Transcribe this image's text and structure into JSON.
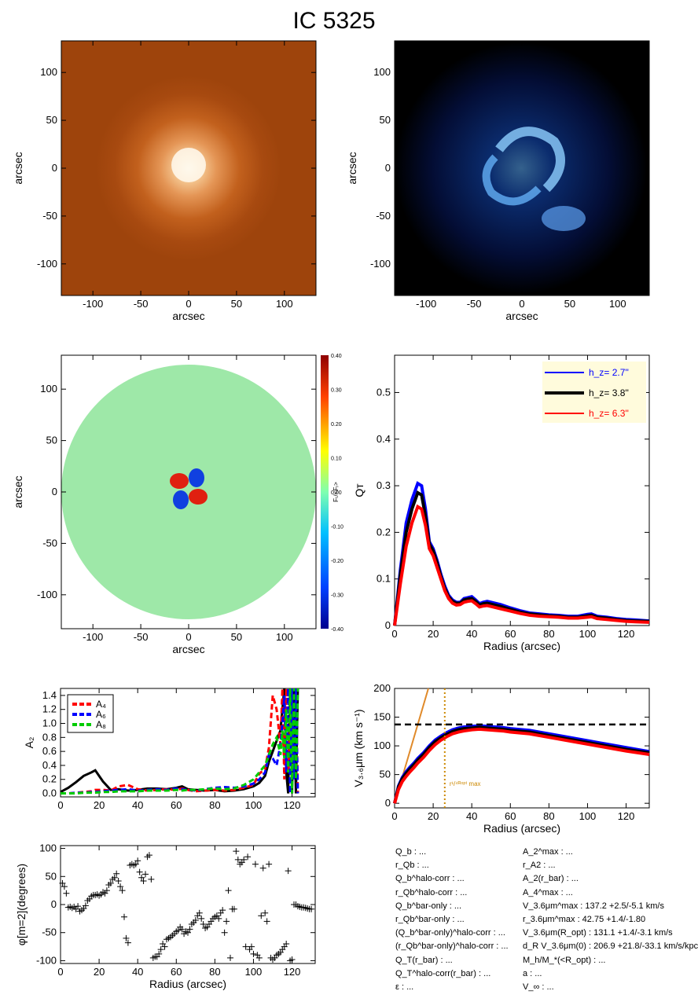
{
  "title": "IC 5325",
  "chart_data": [
    {
      "type": "image",
      "name": "stellar-image",
      "xlabel": "arcsec",
      "ylabel": "arcsec",
      "xticks": [
        -100,
        -50,
        0,
        50,
        100
      ],
      "yticks": [
        -100,
        -50,
        0,
        50,
        100
      ],
      "xlim": [
        -133,
        133
      ],
      "ylim": [
        -133,
        133
      ]
    },
    {
      "type": "image",
      "name": "residual-image",
      "xlabel": "arcsec",
      "ylabel": "arcsec",
      "xticks": [
        -100,
        -50,
        0,
        50,
        100
      ],
      "yticks": [
        -100,
        -50,
        0,
        50,
        100
      ],
      "xlim": [
        -133,
        133
      ],
      "ylim": [
        -133,
        133
      ]
    },
    {
      "type": "heatmap",
      "name": "force-ratio-map",
      "xlabel": "arcsec",
      "ylabel": "arcsec",
      "xticks": [
        -100,
        -50,
        0,
        50,
        100
      ],
      "yticks": [
        -100,
        -50,
        0,
        50,
        100
      ],
      "xlim": [
        -133,
        133
      ],
      "ylim": [
        -133,
        133
      ],
      "colorbar_label": "Fₜ/<Fᵣ>",
      "colorbar_ticks": [
        "0.40",
        "0.30",
        "0.20",
        "0.10",
        "0.00",
        "-0.10",
        "-0.20",
        "-0.30",
        "-0.40"
      ],
      "colorbar_range": [
        -0.4,
        0.4
      ]
    },
    {
      "type": "line",
      "name": "qt-profile",
      "xlabel": "Radius (arcsec)",
      "ylabel": "Qᴛ",
      "xlim": [
        0,
        132
      ],
      "ylim": [
        0,
        0.58
      ],
      "xticks": [
        0,
        20,
        40,
        60,
        80,
        100,
        120
      ],
      "yticks": [
        0.0,
        0.1,
        0.2,
        0.3,
        0.4,
        0.5
      ],
      "legend_position": "top-right",
      "x": [
        0,
        3,
        6,
        9,
        12,
        14,
        16,
        18,
        20,
        22,
        24,
        26,
        28,
        30,
        32,
        34,
        36,
        38,
        40,
        42,
        44,
        46,
        48,
        50,
        55,
        60,
        65,
        70,
        75,
        80,
        85,
        90,
        95,
        100,
        102,
        105,
        110,
        115,
        120,
        125,
        132
      ],
      "series": [
        {
          "name": "h_z= 2.7''",
          "color": "#0000ff",
          "values": [
            0,
            0.12,
            0.22,
            0.27,
            0.305,
            0.3,
            0.25,
            0.18,
            0.165,
            0.14,
            0.11,
            0.085,
            0.065,
            0.055,
            0.05,
            0.05,
            0.058,
            0.06,
            0.062,
            0.055,
            0.047,
            0.05,
            0.052,
            0.05,
            0.045,
            0.038,
            0.032,
            0.027,
            0.025,
            0.023,
            0.022,
            0.02,
            0.02,
            0.024,
            0.025,
            0.02,
            0.018,
            0.015,
            0.013,
            0.012,
            0.01
          ]
        },
        {
          "name": "h_z= 3.8''",
          "color": "#000000",
          "values": [
            0,
            0.11,
            0.2,
            0.25,
            0.285,
            0.28,
            0.235,
            0.175,
            0.16,
            0.135,
            0.105,
            0.08,
            0.062,
            0.052,
            0.048,
            0.048,
            0.055,
            0.057,
            0.058,
            0.052,
            0.044,
            0.047,
            0.048,
            0.046,
            0.041,
            0.035,
            0.029,
            0.025,
            0.023,
            0.021,
            0.02,
            0.018,
            0.018,
            0.021,
            0.022,
            0.018,
            0.016,
            0.013,
            0.011,
            0.01,
            0.009
          ]
        },
        {
          "name": "h_z= 6.3''",
          "color": "#ff0000",
          "values": [
            0,
            0.09,
            0.17,
            0.22,
            0.255,
            0.25,
            0.215,
            0.165,
            0.15,
            0.125,
            0.1,
            0.075,
            0.058,
            0.048,
            0.044,
            0.045,
            0.05,
            0.052,
            0.053,
            0.047,
            0.04,
            0.042,
            0.043,
            0.041,
            0.036,
            0.031,
            0.026,
            0.022,
            0.02,
            0.019,
            0.018,
            0.016,
            0.016,
            0.018,
            0.019,
            0.015,
            0.013,
            0.011,
            0.009,
            0.008,
            0.007
          ]
        }
      ]
    },
    {
      "type": "line",
      "name": "fourier-amplitudes",
      "xlabel": "",
      "ylabel": "A₂",
      "xlim": [
        0,
        132
      ],
      "ylim": [
        -0.05,
        1.5
      ],
      "xticks": [
        0,
        20,
        40,
        60,
        80,
        100,
        120
      ],
      "yticks": [
        "0.0",
        "0.2",
        "0.4",
        "0.6",
        "0.8",
        "1.0",
        "1.2",
        "1.4"
      ],
      "legend_position": "top-left",
      "x": [
        0,
        4,
        8,
        12,
        16,
        18,
        22,
        26,
        30,
        35,
        40,
        45,
        50,
        55,
        60,
        63,
        66,
        70,
        75,
        80,
        85,
        90,
        95,
        100,
        103,
        106,
        108,
        110,
        112,
        114,
        115,
        116,
        117,
        118,
        119,
        120,
        121,
        122,
        123
      ],
      "series": [
        {
          "name": "A₂",
          "color": "#000000",
          "dash": "solid",
          "values": [
            0.02,
            0.08,
            0.16,
            0.25,
            0.3,
            0.33,
            0.17,
            0.05,
            0.06,
            0.04,
            0.05,
            0.07,
            0.07,
            0.06,
            0.08,
            0.1,
            0.06,
            0.05,
            0.04,
            0.05,
            0.03,
            0.04,
            0.06,
            0.1,
            0.15,
            0.25,
            0.45,
            0.6,
            0.75,
            0.9,
            1.2,
            1.5,
            0.3,
            0.0,
            1.5,
            0.0,
            1.5,
            0.0,
            1.5
          ]
        },
        {
          "name": "A₄",
          "color": "#ff0000",
          "dash": "dash",
          "values": [
            0.0,
            0.0,
            0.01,
            0.02,
            0.03,
            0.05,
            0.05,
            0.04,
            0.1,
            0.12,
            0.06,
            0.04,
            0.05,
            0.06,
            0.05,
            0.07,
            0.05,
            0.03,
            0.04,
            0.05,
            0.04,
            0.05,
            0.08,
            0.12,
            0.28,
            0.35,
            0.65,
            1.4,
            1.2,
            0.7,
            1.5,
            0.2,
            1.5,
            0.3,
            0.9,
            1.5,
            0.4,
            1.5,
            0.0
          ]
        },
        {
          "name": "A₆",
          "color": "#0000ff",
          "dash": "dash",
          "values": [
            0.0,
            0.0,
            0.01,
            0.01,
            0.02,
            0.02,
            0.03,
            0.04,
            0.05,
            0.06,
            0.04,
            0.05,
            0.06,
            0.05,
            0.07,
            0.06,
            0.05,
            0.04,
            0.06,
            0.08,
            0.09,
            0.08,
            0.1,
            0.14,
            0.2,
            0.3,
            0.55,
            0.5,
            0.4,
            0.7,
            1.0,
            1.4,
            0.3,
            1.5,
            0.0,
            1.5,
            0.2,
            1.5,
            0.0
          ]
        },
        {
          "name": "A₈",
          "color": "#00cc00",
          "dash": "dash",
          "values": [
            0.0,
            0.0,
            0.0,
            0.01,
            0.01,
            0.01,
            0.02,
            0.02,
            0.03,
            0.03,
            0.03,
            0.04,
            0.04,
            0.04,
            0.05,
            0.04,
            0.05,
            0.05,
            0.06,
            0.07,
            0.06,
            0.07,
            0.12,
            0.2,
            0.3,
            0.4,
            0.55,
            0.7,
            0.8,
            0.55,
            0.9,
            0.5,
            1.2,
            0.3,
            1.5,
            0.0,
            1.5,
            0.2,
            1.5
          ]
        }
      ]
    },
    {
      "type": "line",
      "name": "rotation-curve",
      "xlabel": "Radius (arcsec)",
      "ylabel": "V₃.₆μm (km s⁻¹)",
      "xlim": [
        0,
        132
      ],
      "ylim": [
        -8,
        200
      ],
      "xticks": [
        0,
        20,
        40,
        60,
        80,
        100,
        120
      ],
      "yticks": [
        0,
        50,
        100,
        150,
        200
      ],
      "x": [
        0,
        2,
        4,
        6,
        8,
        10,
        12,
        15,
        18,
        21,
        24,
        27,
        30,
        33,
        36,
        40,
        44,
        48,
        52,
        56,
        60,
        70,
        80,
        90,
        100,
        110,
        120,
        132
      ],
      "series": [
        {
          "name": "",
          "color": "#0000ff",
          "values": [
            0,
            30,
            45,
            55,
            63,
            70,
            78,
            88,
            100,
            110,
            117,
            123,
            128,
            131,
            133,
            134,
            135,
            134,
            133,
            132,
            130,
            127,
            121,
            115,
            109,
            103,
            97,
            90
          ]
        },
        {
          "name": "",
          "color": "#000000",
          "values": [
            0,
            28,
            43,
            52,
            60,
            67,
            75,
            85,
            97,
            107,
            114,
            120,
            125,
            128,
            130,
            131,
            132,
            131,
            130,
            129,
            127,
            124,
            118,
            112,
            106,
            100,
            94,
            88
          ]
        },
        {
          "name": "",
          "color": "#ff0000",
          "values": [
            0,
            24,
            38,
            47,
            55,
            62,
            70,
            80,
            92,
            102,
            110,
            116,
            121,
            124,
            126,
            128,
            129,
            128,
            127,
            126,
            124,
            121,
            115,
            109,
            103,
            97,
            91,
            85
          ]
        }
      ],
      "hline": {
        "y": 137.2,
        "color": "#000000",
        "dash": "dash"
      },
      "solid_body": {
        "x": [
          0,
          17.5
        ],
        "y": [
          0,
          200
        ],
        "color": "#e08a2a"
      },
      "vline": {
        "x": 26,
        "color": "#cc8800",
        "dash": "dot"
      },
      "vline_label": "r¹/⁴ᴿᵒᵖᵗ max"
    },
    {
      "type": "scatter",
      "name": "phase-profile",
      "xlabel": "Radius (arcsec)",
      "ylabel": "φ[m=2](degrees)",
      "xlim": [
        0,
        132
      ],
      "ylim": [
        -105,
        105
      ],
      "xticks": [
        0,
        20,
        40,
        60,
        80,
        100,
        120
      ],
      "yticks": [
        -100,
        -50,
        0,
        50,
        100
      ],
      "marker": "+",
      "x": [
        1,
        2,
        3,
        4,
        5,
        6,
        7,
        8,
        9,
        10,
        11,
        12,
        13,
        14,
        15,
        16,
        17,
        18,
        19,
        20,
        21,
        22,
        23,
        24,
        25,
        26,
        27,
        28,
        29,
        30,
        31,
        32,
        33,
        34,
        35,
        36,
        37,
        38,
        39,
        40,
        41,
        42,
        43,
        44,
        45,
        46,
        47,
        48,
        49,
        50,
        51,
        52,
        53,
        54,
        55,
        56,
        57,
        58,
        59,
        60,
        61,
        62,
        63,
        64,
        65,
        66,
        67,
        68,
        69,
        70,
        71,
        72,
        73,
        74,
        75,
        76,
        77,
        78,
        79,
        80,
        81,
        82,
        83,
        84,
        85,
        86,
        87,
        88,
        89,
        90,
        91,
        92,
        93,
        94,
        95,
        96,
        97,
        98,
        99,
        100,
        101,
        102,
        103,
        104,
        105,
        106,
        107,
        108,
        109,
        110,
        111,
        112,
        113,
        114,
        115,
        116,
        117,
        118,
        119,
        120,
        121,
        122,
        123,
        124,
        125,
        126,
        127,
        128,
        129,
        130
      ],
      "y": [
        38,
        32,
        20,
        -5,
        -4,
        -6,
        -4,
        -8,
        -3,
        -12,
        -10,
        -7,
        -2,
        7,
        10,
        15,
        17,
        17,
        18,
        16,
        18,
        22,
        20,
        25,
        35,
        38,
        45,
        48,
        55,
        42,
        32,
        25,
        -22,
        -60,
        -68,
        70,
        72,
        70,
        72,
        78,
        58,
        48,
        42,
        54,
        85,
        88,
        45,
        -95,
        -93,
        -93,
        -88,
        -80,
        -70,
        -75,
        -62,
        -60,
        -58,
        -55,
        -52,
        -48,
        -46,
        -40,
        -44,
        -52,
        -48,
        -50,
        -44,
        -35,
        -32,
        -28,
        -20,
        -15,
        -25,
        -35,
        -42,
        -40,
        -35,
        -30,
        -25,
        -22,
        -20,
        -25,
        -15,
        -10,
        -50,
        -30,
        25,
        -95,
        -8,
        -8,
        95,
        80,
        72,
        75,
        80,
        -75,
        85,
        -80,
        -75,
        -88,
        72,
        -90,
        -95,
        -20,
        65,
        -15,
        -30,
        72,
        -95,
        -98,
        -95,
        -90,
        -88,
        -85,
        -80,
        -75,
        -70,
        60,
        -100,
        -98,
        0,
        0,
        -3,
        -4,
        -5,
        -5,
        -6,
        -7,
        -8,
        -8
      ]
    }
  ],
  "stats_left": [
    "Q_b : ...",
    "r_Qb : ...",
    "Q_b^halo-corr : ...",
    "r_Qb^halo-corr : ...",
    "Q_b^bar-only : ...",
    "r_Qb^bar-only : ...",
    "(Q_b^bar-only)^halo-corr : ...",
    "(r_Qb^bar-only)^halo-corr : ...",
    "Q_T(r_bar) : ...",
    "Q_T^halo-corr(r_bar) : ...",
    "ε : ..."
  ],
  "stats_right": [
    "A_2^max : ...",
    "r_A2 : ...",
    "A_2(r_bar) : ...",
    "A_4^max : ...",
    "V_3.6μm^max : 137.2 +2.5/-5.1 km/s",
    "r_3.6μm^max : 42.75 +1.4/-1.80",
    "V_3.6μm(R_opt) : 131.1 +1.4/-3.1 km/s",
    "d_R V_3.6μm(0) : 206.9 +21.8/-33.1 km/s/kpc",
    "M_h/M_*(<R_opt) : ...",
    "a : ...",
    "V_∞ : ..."
  ]
}
